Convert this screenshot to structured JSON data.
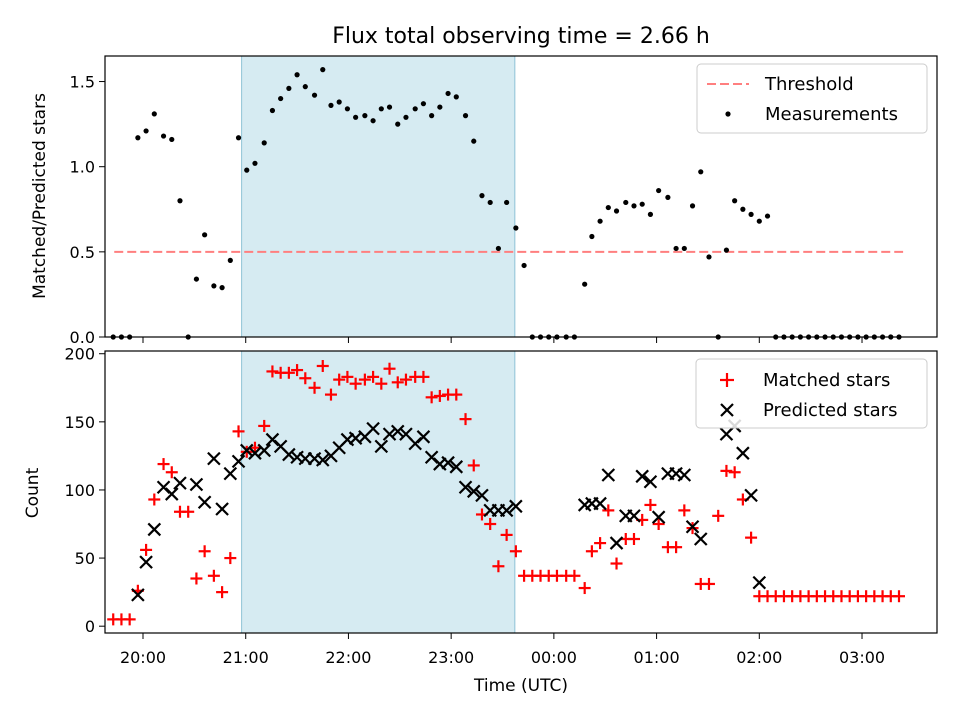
{
  "chart_data": [
    {
      "type": "scatter",
      "title": "Flux total observing time = 2.66 h",
      "ylabel": "Matched/Predicted stars",
      "ylim": [
        0,
        1.65
      ],
      "yticks": [
        0.0,
        0.5,
        1.0,
        1.5
      ],
      "ytick_labels": [
        "0.0",
        "0.5",
        "1.0",
        "1.5"
      ],
      "xlim": [
        19.63,
        27.73
      ],
      "highlight_span": {
        "from": 20.96,
        "to": 23.62,
        "color": "#add8e6"
      },
      "threshold": {
        "name": "Threshold",
        "y": 0.5,
        "x_from": 19.72,
        "x_to": 27.4,
        "color": "#ff7f7f"
      },
      "legend": {
        "position": "upper right",
        "entries": [
          "Threshold",
          "Measurements"
        ]
      },
      "series": [
        {
          "name": "Measurements",
          "color": "#000000",
          "points": [
            [
              19.71,
              0
            ],
            [
              19.79,
              0
            ],
            [
              19.87,
              0
            ],
            [
              19.95,
              1.17
            ],
            [
              20.03,
              1.21
            ],
            [
              20.11,
              1.31
            ],
            [
              20.2,
              1.18
            ],
            [
              20.28,
              1.16
            ],
            [
              20.36,
              0.8
            ],
            [
              20.44,
              0
            ],
            [
              20.52,
              0.34
            ],
            [
              20.6,
              0.6
            ],
            [
              20.69,
              0.3
            ],
            [
              20.77,
              0.29
            ],
            [
              20.85,
              0.45
            ],
            [
              20.93,
              1.17
            ],
            [
              21.01,
              0.98
            ],
            [
              21.09,
              1.02
            ],
            [
              21.18,
              1.14
            ],
            [
              21.26,
              1.33
            ],
            [
              21.34,
              1.4
            ],
            [
              21.42,
              1.46
            ],
            [
              21.5,
              1.54
            ],
            [
              21.58,
              1.47
            ],
            [
              21.67,
              1.42
            ],
            [
              21.75,
              1.57
            ],
            [
              21.83,
              1.36
            ],
            [
              21.91,
              1.38
            ],
            [
              21.99,
              1.34
            ],
            [
              22.07,
              1.29
            ],
            [
              22.16,
              1.3
            ],
            [
              22.24,
              1.27
            ],
            [
              22.32,
              1.34
            ],
            [
              22.4,
              1.35
            ],
            [
              22.48,
              1.25
            ],
            [
              22.56,
              1.29
            ],
            [
              22.65,
              1.34
            ],
            [
              22.73,
              1.37
            ],
            [
              22.81,
              1.3
            ],
            [
              22.89,
              1.35
            ],
            [
              22.97,
              1.43
            ],
            [
              23.05,
              1.41
            ],
            [
              23.14,
              1.3
            ],
            [
              23.22,
              1.15
            ],
            [
              23.3,
              0.83
            ],
            [
              23.38,
              0.79
            ],
            [
              23.46,
              0.52
            ],
            [
              23.54,
              0.79
            ],
            [
              23.63,
              0.64
            ],
            [
              23.71,
              0.42
            ],
            [
              23.79,
              0
            ],
            [
              23.87,
              0
            ],
            [
              23.95,
              0
            ],
            [
              24.03,
              0
            ],
            [
              24.12,
              0
            ],
            [
              24.2,
              0
            ],
            [
              24.3,
              0.31
            ],
            [
              24.37,
              0.59
            ],
            [
              24.45,
              0.68
            ],
            [
              24.53,
              0.76
            ],
            [
              24.61,
              0.74
            ],
            [
              24.7,
              0.79
            ],
            [
              24.78,
              0.77
            ],
            [
              24.86,
              0.78
            ],
            [
              24.94,
              0.72
            ],
            [
              25.02,
              0.86
            ],
            [
              25.11,
              0.82
            ],
            [
              25.19,
              0.52
            ],
            [
              25.27,
              0.52
            ],
            [
              25.35,
              0.77
            ],
            [
              25.43,
              0.97
            ],
            [
              25.51,
              0.47
            ],
            [
              25.6,
              0
            ],
            [
              25.68,
              0.51
            ],
            [
              25.76,
              0.8
            ],
            [
              25.84,
              0.75
            ],
            [
              25.92,
              0.72
            ],
            [
              26.0,
              0.68
            ],
            [
              26.08,
              0.71
            ],
            [
              26.16,
              0
            ],
            [
              26.24,
              0
            ],
            [
              26.32,
              0
            ],
            [
              26.4,
              0
            ],
            [
              26.48,
              0
            ],
            [
              26.56,
              0
            ],
            [
              26.64,
              0
            ],
            [
              26.72,
              0
            ],
            [
              26.8,
              0
            ],
            [
              26.88,
              0
            ],
            [
              26.96,
              0
            ],
            [
              27.04,
              0
            ],
            [
              27.12,
              0
            ],
            [
              27.2,
              0
            ],
            [
              27.28,
              0
            ],
            [
              27.36,
              0
            ]
          ]
        }
      ]
    },
    {
      "type": "scatter",
      "xlabel": "Time (UTC)",
      "ylabel": "Count",
      "ylim": [
        -5,
        202
      ],
      "yticks": [
        0,
        50,
        100,
        150,
        200
      ],
      "ytick_labels": [
        "0",
        "50",
        "100",
        "150",
        "200"
      ],
      "xlim": [
        19.63,
        27.73
      ],
      "xticks": [
        20,
        21,
        22,
        23,
        24,
        25,
        26,
        27
      ],
      "xtick_labels": [
        "20:00",
        "21:00",
        "22:00",
        "23:00",
        "00:00",
        "01:00",
        "02:00",
        "03:00"
      ],
      "highlight_span": {
        "from": 20.96,
        "to": 23.62,
        "color": "#add8e6"
      },
      "legend": {
        "position": "upper right",
        "entries": [
          "Matched stars",
          "Predicted stars"
        ]
      },
      "series": [
        {
          "name": "Matched stars",
          "marker": "plus",
          "color": "#ff0000",
          "points": [
            [
              19.71,
              5
            ],
            [
              19.79,
              5
            ],
            [
              19.87,
              5
            ],
            [
              19.95,
              26
            ],
            [
              20.03,
              56
            ],
            [
              20.11,
              93
            ],
            [
              20.2,
              119
            ],
            [
              20.28,
              113
            ],
            [
              20.36,
              84
            ],
            [
              20.44,
              84
            ],
            [
              20.52,
              35
            ],
            [
              20.6,
              55
            ],
            [
              20.69,
              37
            ],
            [
              20.77,
              25
            ],
            [
              20.85,
              50
            ],
            [
              20.93,
              143
            ],
            [
              21.01,
              128
            ],
            [
              21.09,
              131
            ],
            [
              21.18,
              147
            ],
            [
              21.26,
              187
            ],
            [
              21.34,
              186
            ],
            [
              21.42,
              186
            ],
            [
              21.5,
              188
            ],
            [
              21.58,
              182
            ],
            [
              21.67,
              175
            ],
            [
              21.75,
              191
            ],
            [
              21.83,
              170
            ],
            [
              21.91,
              181
            ],
            [
              21.99,
              183
            ],
            [
              22.07,
              178
            ],
            [
              22.16,
              181
            ],
            [
              22.24,
              183
            ],
            [
              22.32,
              178
            ],
            [
              22.4,
              189
            ],
            [
              22.48,
              179
            ],
            [
              22.56,
              181
            ],
            [
              22.65,
              183
            ],
            [
              22.73,
              183
            ],
            [
              22.81,
              168
            ],
            [
              22.89,
              169
            ],
            [
              22.97,
              170
            ],
            [
              23.05,
              170
            ],
            [
              23.14,
              152
            ],
            [
              23.22,
              118
            ],
            [
              23.3,
              82
            ],
            [
              23.38,
              75
            ],
            [
              23.46,
              44
            ],
            [
              23.54,
              67
            ],
            [
              23.63,
              55
            ],
            [
              23.71,
              37
            ],
            [
              23.79,
              37
            ],
            [
              23.87,
              37
            ],
            [
              23.95,
              37
            ],
            [
              24.03,
              37
            ],
            [
              24.12,
              37
            ],
            [
              24.2,
              37
            ],
            [
              24.3,
              28
            ],
            [
              24.37,
              55
            ],
            [
              24.45,
              61
            ],
            [
              24.53,
              85
            ],
            [
              24.61,
              46
            ],
            [
              24.7,
              64
            ],
            [
              24.78,
              64
            ],
            [
              24.86,
              78
            ],
            [
              24.94,
              89
            ],
            [
              25.02,
              75
            ],
            [
              25.11,
              58
            ],
            [
              25.19,
              58
            ],
            [
              25.27,
              85
            ],
            [
              25.35,
              72
            ],
            [
              25.43,
              31
            ],
            [
              25.51,
              31
            ],
            [
              25.6,
              81
            ],
            [
              25.68,
              114
            ],
            [
              25.76,
              113
            ],
            [
              25.84,
              93
            ],
            [
              25.92,
              65
            ],
            [
              26.0,
              22
            ],
            [
              26.08,
              22
            ],
            [
              26.16,
              22
            ],
            [
              26.24,
              22
            ],
            [
              26.32,
              22
            ],
            [
              26.4,
              22
            ],
            [
              26.48,
              22
            ],
            [
              26.56,
              22
            ],
            [
              26.64,
              22
            ],
            [
              26.72,
              22
            ],
            [
              26.8,
              22
            ],
            [
              26.88,
              22
            ],
            [
              26.96,
              22
            ],
            [
              27.04,
              22
            ],
            [
              27.12,
              22
            ],
            [
              27.2,
              22
            ],
            [
              27.28,
              22
            ],
            [
              27.36,
              22
            ]
          ]
        },
        {
          "name": "Predicted stars",
          "marker": "x",
          "color": "#000000",
          "points": [
            [
              19.95,
              23
            ],
            [
              20.03,
              47
            ],
            [
              20.11,
              71
            ],
            [
              20.2,
              102
            ],
            [
              20.28,
              97
            ],
            [
              20.36,
              105
            ],
            [
              20.52,
              104
            ],
            [
              20.6,
              91
            ],
            [
              20.69,
              123
            ],
            [
              20.77,
              86
            ],
            [
              20.85,
              112
            ],
            [
              20.93,
              121
            ],
            [
              21.01,
              129
            ],
            [
              21.09,
              127
            ],
            [
              21.18,
              129
            ],
            [
              21.26,
              137
            ],
            [
              21.34,
              132
            ],
            [
              21.42,
              126
            ],
            [
              21.5,
              124
            ],
            [
              21.58,
              123
            ],
            [
              21.67,
              123
            ],
            [
              21.75,
              122
            ],
            [
              21.83,
              125
            ],
            [
              21.91,
              131
            ],
            [
              21.99,
              137
            ],
            [
              22.07,
              138
            ],
            [
              22.16,
              139
            ],
            [
              22.24,
              145
            ],
            [
              22.32,
              132
            ],
            [
              22.4,
              141
            ],
            [
              22.48,
              143
            ],
            [
              22.56,
              141
            ],
            [
              22.65,
              134
            ],
            [
              22.73,
              139
            ],
            [
              22.81,
              124
            ],
            [
              22.89,
              119
            ],
            [
              22.97,
              120
            ],
            [
              23.05,
              117
            ],
            [
              23.14,
              102
            ],
            [
              23.22,
              99
            ],
            [
              23.3,
              96
            ],
            [
              23.38,
              85
            ],
            [
              23.46,
              85
            ],
            [
              23.54,
              85
            ],
            [
              23.63,
              88
            ],
            [
              24.3,
              89
            ],
            [
              24.37,
              90
            ],
            [
              24.45,
              90
            ],
            [
              24.53,
              111
            ],
            [
              24.61,
              61
            ],
            [
              24.7,
              81
            ],
            [
              24.78,
              81
            ],
            [
              24.86,
              110
            ],
            [
              24.94,
              106
            ],
            [
              25.02,
              80
            ],
            [
              25.11,
              112
            ],
            [
              25.19,
              112
            ],
            [
              25.27,
              111
            ],
            [
              25.35,
              73
            ],
            [
              25.43,
              64
            ],
            [
              25.68,
              141
            ],
            [
              25.76,
              147
            ],
            [
              25.84,
              127
            ],
            [
              25.92,
              96
            ],
            [
              26.0,
              32
            ]
          ]
        }
      ]
    }
  ]
}
